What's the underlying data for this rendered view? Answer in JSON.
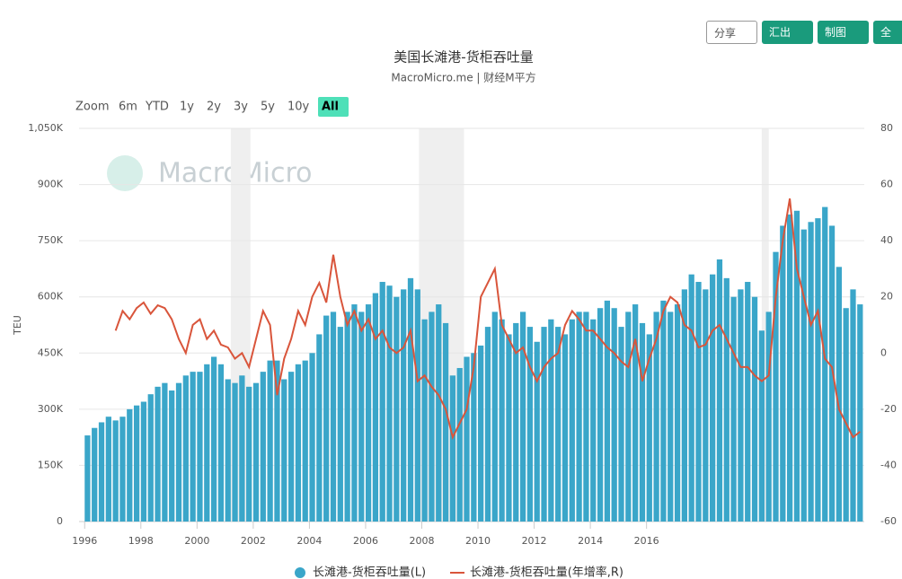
{
  "toolbar": [
    "分享",
    "汇出",
    "制图",
    "全"
  ],
  "range_selector": {
    "label": "Zoom",
    "buttons": [
      "6m",
      "YTD",
      "1y",
      "2y",
      "3y",
      "5y",
      "10y",
      "All"
    ],
    "selected": 7
  },
  "watermark": "MacroMicro",
  "chart_data": {
    "type": "combo",
    "title": "美国长滩港-货柜吞吐量",
    "subtitle": "MacroMicro.me | 财经M平方",
    "y_label": "TEU",
    "x": [
      1996,
      1996.25,
      1996.5,
      1996.75,
      1997,
      1997.25,
      1997.5,
      1997.75,
      1998,
      1998.25,
      1998.5,
      1998.75,
      1999,
      1999.25,
      1999.5,
      1999.75,
      2000,
      2000.25,
      2000.5,
      2000.75,
      2001,
      2001.25,
      2001.5,
      2001.75,
      2002,
      2002.25,
      2002.5,
      2002.75,
      2003,
      2003.25,
      2003.5,
      2003.75,
      2004,
      2004.25,
      2004.5,
      2004.75,
      2005,
      2005.25,
      2005.5,
      2005.75,
      2006,
      2006.25,
      2006.5,
      2006.75,
      2007,
      2007.25,
      2007.5,
      2007.75,
      2008,
      2008.25,
      2008.5,
      2008.75,
      2009,
      2009.25,
      2009.5,
      2009.75,
      2010,
      2010.25,
      2010.5,
      2010.75,
      2011,
      2011.25,
      2011.5,
      2011.75,
      2012,
      2012.25,
      2012.5,
      2012.75,
      2013,
      2013.25,
      2013.5,
      2013.75,
      2014,
      2014.25,
      2014.5,
      2014.75,
      2015,
      2015.25,
      2015.5,
      2015.75,
      2016,
      2016.25,
      2016.5,
      2016.75,
      2017,
      2017.25,
      2017.5,
      2017.75,
      2018,
      2018.25,
      2018.5,
      2018.75,
      2019,
      2019.25,
      2019.5,
      2019.75,
      2020,
      2020.25,
      2020.5,
      2020.75,
      2021,
      2021.25,
      2021.5,
      2021.75,
      2022,
      2022.25,
      2022.5,
      2022.75,
      2023,
      2023.25,
      2023.5
    ],
    "series": [
      {
        "name": "长滩港-货柜吞吐量(L)",
        "type": "bar",
        "color": "#3aa6c9",
        "values": [
          230000,
          250000,
          265000,
          280000,
          270000,
          280000,
          300000,
          310000,
          320000,
          340000,
          360000,
          370000,
          350000,
          370000,
          390000,
          400000,
          400000,
          420000,
          440000,
          420000,
          380000,
          370000,
          390000,
          360000,
          370000,
          400000,
          430000,
          430000,
          380000,
          400000,
          420000,
          430000,
          450000,
          500000,
          550000,
          560000,
          520000,
          560000,
          580000,
          560000,
          580000,
          610000,
          640000,
          630000,
          600000,
          620000,
          650000,
          620000,
          540000,
          560000,
          580000,
          530000,
          390000,
          410000,
          440000,
          450000,
          470000,
          520000,
          560000,
          540000,
          500000,
          530000,
          560000,
          520000,
          480000,
          520000,
          540000,
          520000,
          500000,
          540000,
          560000,
          560000,
          540000,
          570000,
          590000,
          570000,
          520000,
          560000,
          580000,
          530000,
          500000,
          560000,
          590000,
          560000,
          580000,
          620000,
          660000,
          640000,
          620000,
          660000,
          700000,
          650000,
          600000,
          620000,
          640000,
          600000,
          510000,
          560000,
          720000,
          790000,
          820000,
          830000,
          780000,
          800000,
          810000,
          840000,
          790000,
          680000,
          570000,
          620000,
          580000
        ]
      },
      {
        "name": "长滩港-货柜吞吐量(年增率,R)",
        "type": "line",
        "axis": "y2",
        "color": "#d9553b",
        "values": [
          null,
          null,
          null,
          null,
          8,
          15,
          12,
          16,
          18,
          14,
          17,
          16,
          12,
          5,
          0,
          10,
          12,
          5,
          8,
          3,
          2,
          -2,
          0,
          -5,
          5,
          15,
          10,
          -15,
          -2,
          5,
          15,
          10,
          20,
          25,
          18,
          35,
          20,
          10,
          15,
          8,
          12,
          5,
          8,
          2,
          0,
          2,
          8,
          -10,
          -8,
          -12,
          -15,
          -20,
          -30,
          -25,
          -20,
          -5,
          20,
          25,
          30,
          10,
          5,
          0,
          2,
          -5,
          -10,
          -5,
          -2,
          0,
          10,
          15,
          12,
          8,
          8,
          5,
          2,
          0,
          -3,
          -5,
          5,
          -10,
          -2,
          5,
          15,
          20,
          18,
          10,
          8,
          2,
          3,
          8,
          10,
          5,
          0,
          -5,
          -5,
          -8,
          -10,
          -8,
          20,
          40,
          55,
          30,
          20,
          10,
          15,
          -2,
          -5,
          -20,
          -25,
          -30,
          -28
        ]
      }
    ],
    "shaded_periods": [
      [
        2001.2,
        2001.9
      ],
      [
        2007.9,
        2009.5
      ],
      [
        2020.1,
        2020.35
      ]
    ],
    "xlim": [
      1995.8,
      2023.75
    ],
    "xticks": [
      1996,
      1998,
      2000,
      2002,
      2004,
      2006,
      2008,
      2010,
      2012,
      2014,
      2016
    ],
    "ylim": [
      0,
      1050000
    ],
    "yticks": [
      0,
      {
        "value": 150000,
        "label": "150K"
      },
      {
        "value": 300000,
        "label": "300K"
      },
      {
        "value": 450000,
        "label": "450K"
      },
      {
        "value": 600000,
        "label": "600K"
      },
      {
        "value": 750000,
        "label": "750K"
      },
      {
        "value": 900000,
        "label": "900K"
      },
      {
        "value": 1050000,
        "label": "1,050K"
      }
    ],
    "y2lim": [
      -60,
      80
    ],
    "y2ticks": [
      -60,
      -40,
      -20,
      0,
      20,
      40,
      60,
      80
    ],
    "grid": true,
    "legend": "bottom"
  }
}
